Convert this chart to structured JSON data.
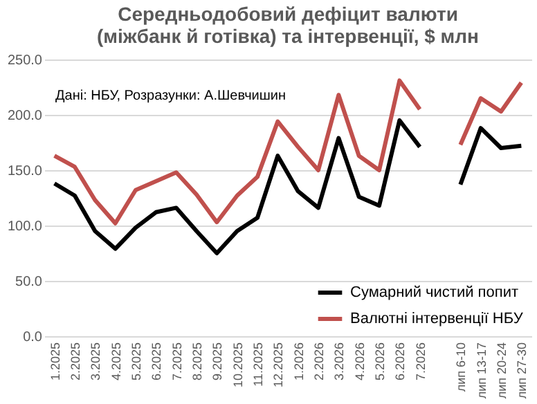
{
  "chart_data": {
    "type": "line",
    "title": "Середньодобовий дефіцит валюти\n(міжбанк й готівка) та інтервенції, $ млн",
    "categories": [
      "1.2025",
      "2.2025",
      "3.2025",
      "4.2025",
      "5.2025",
      "6.2025",
      "7.2025",
      "8.2025",
      "9.2025",
      "10.2025",
      "11.2025",
      "12.2025",
      "1.2026",
      "2.2026",
      "3.2026",
      "4.2026",
      "5.2026",
      "6.2026",
      "7.2026",
      null,
      "лип 6-10",
      "лип 13-17",
      "лип 20-24",
      "лип 27-30"
    ],
    "series": [
      {
        "name": "Сумарний чистий попит",
        "color": "#000000",
        "values": [
          138,
          127,
          95,
          79,
          98,
          112,
          116,
          95,
          75,
          95,
          107,
          163,
          131,
          116,
          179,
          126,
          118,
          195,
          171,
          null,
          137,
          188,
          170,
          172
        ]
      },
      {
        "name": "Валютні інтервенції НБУ",
        "color": "#c0504d",
        "values": [
          163,
          153,
          123,
          102,
          132,
          140,
          148,
          128,
          103,
          127,
          144,
          194,
          171,
          150,
          218,
          163,
          150,
          231,
          205,
          null,
          173,
          215,
          203,
          229
        ]
      }
    ],
    "ylim": [
      0,
      250
    ],
    "yticks": [
      {
        "value": 0,
        "label": "0.0"
      },
      {
        "value": 50,
        "label": "50.0"
      },
      {
        "value": 100,
        "label": "100.0"
      },
      {
        "value": 150,
        "label": "150.0"
      },
      {
        "value": 200,
        "label": "200.0"
      },
      {
        "value": 250,
        "label": "250.0"
      }
    ],
    "annotations": [
      "Дані: НБУ, Розразунки: А.Шевчишин"
    ],
    "grid": "y",
    "legend": "bottom right",
    "marker": "none",
    "line_style": "solid"
  }
}
